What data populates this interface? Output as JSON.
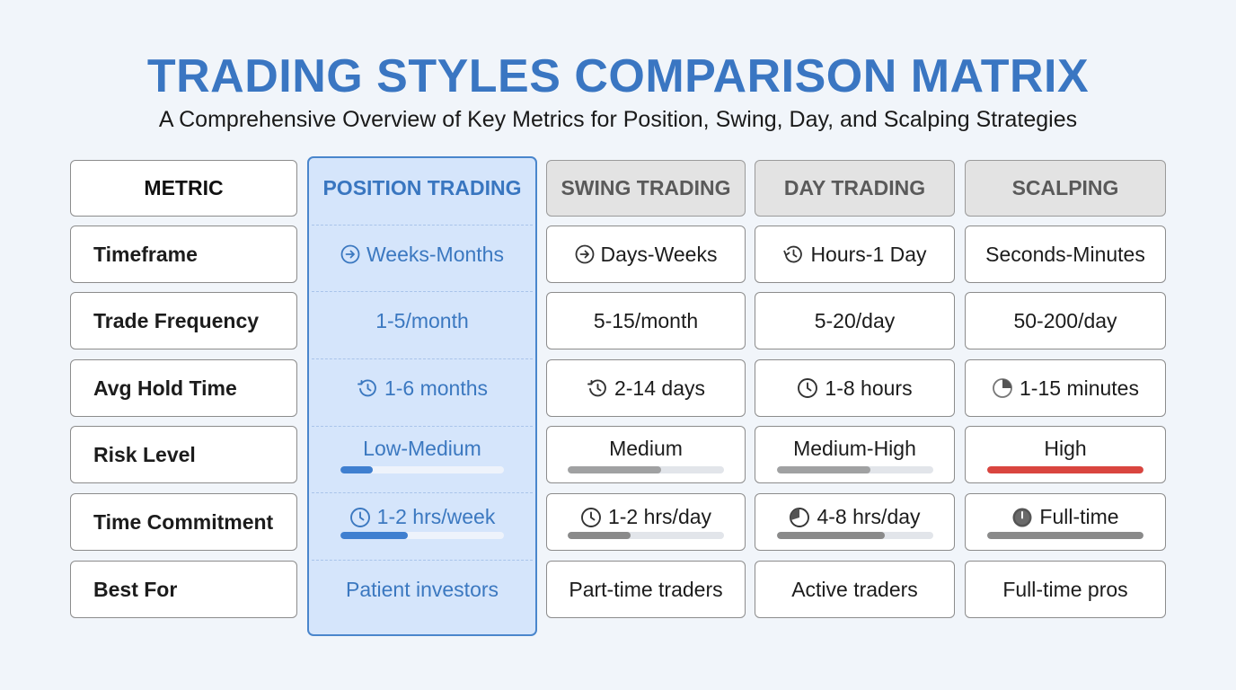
{
  "title": "TRADING STYLES COMPARISON MATRIX",
  "subtitle": "A Comprehensive Overview of Key Metrics for Position, Swing, Day, and Scalping Strategies",
  "colors": {
    "accent": "#3a76c2",
    "position_column_bg": "#d5e5fb",
    "header_gray": "#e3e3e3",
    "bar_blue": "#3f7fd0",
    "bar_gray": "#8a8a8a",
    "bar_red": "#d9453f"
  },
  "header": {
    "metric": "METRIC",
    "position": "POSITION TRADING",
    "swing": "SWING TRADING",
    "day": "DAY TRADING",
    "scalping": "SCALPING"
  },
  "metrics": {
    "timeframe": "Timeframe",
    "frequency": "Trade Frequency",
    "hold": "Avg Hold Time",
    "risk": "Risk Level",
    "commitment": "Time Commitment",
    "best": "Best For"
  },
  "position": {
    "timeframe": "Weeks-Months",
    "timeframe_icon": "arrow-right-circle-icon",
    "frequency": "1-5/month",
    "hold": "1-6 months",
    "hold_icon": "history-icon",
    "risk": "Low-Medium",
    "risk_level": 0.2,
    "commitment": "1-2 hrs/week",
    "commitment_icon": "clock-icon",
    "commitment_level": 0.41,
    "best": "Patient investors"
  },
  "swing": {
    "timeframe": "Days-Weeks",
    "timeframe_icon": "arrow-right-circle-icon",
    "frequency": "5-15/month",
    "hold": "2-14 days",
    "hold_icon": "history-icon",
    "risk": "Medium",
    "risk_level": 0.6,
    "commitment": "1-2 hrs/day",
    "commitment_icon": "clock-icon",
    "commitment_level": 0.4,
    "best": "Part-time traders"
  },
  "day": {
    "timeframe": "Hours-1 Day",
    "timeframe_icon": "timer-refresh-icon",
    "frequency": "5-20/day",
    "hold": "1-8 hours",
    "hold_icon": "clock-icon",
    "risk": "Medium-High",
    "risk_level": 0.6,
    "commitment": "4-8 hrs/day",
    "commitment_icon": "pie-clock-icon",
    "commitment_level": 0.69,
    "best": "Active traders"
  },
  "scalping": {
    "timeframe": "Seconds-Minutes",
    "frequency": "50-200/day",
    "hold": "1-15 minutes",
    "hold_icon": "quarter-pie-icon",
    "risk": "High",
    "risk_level": 1.0,
    "commitment": "Full-time",
    "commitment_icon": "filled-clock-icon",
    "commitment_level": 1.0,
    "best": "Full-time pros"
  }
}
